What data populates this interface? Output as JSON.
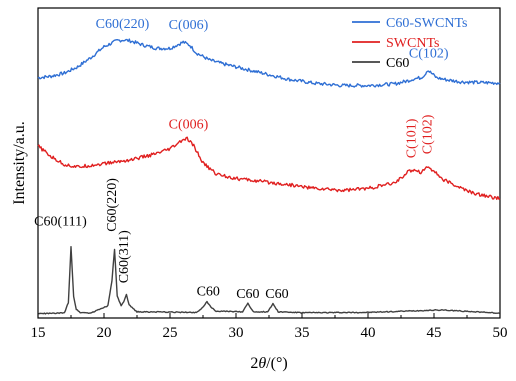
{
  "chart_data": {
    "type": "line",
    "xlabel_prefix": "2",
    "xlabel_var": "θ",
    "xlabel_unit": "/(°)",
    "ylabel": "Intensity/a.u.",
    "xlim": [
      15,
      50
    ],
    "x_ticks": [
      "15",
      "20",
      "25",
      "30",
      "35",
      "40",
      "45",
      "50"
    ],
    "legend_position": "top-right",
    "series": [
      {
        "name": "C60-SWCNTs",
        "color": "#2f6fd4",
        "x": [
          15,
          16,
          17,
          18,
          19,
          20,
          21,
          21.5,
          22,
          23,
          24,
          25,
          25.5,
          26,
          26.5,
          27,
          28,
          29,
          30,
          32,
          34,
          36,
          38,
          40,
          42,
          43,
          43.5,
          44,
          44.3,
          44.5,
          44.8,
          45.2,
          46,
          47,
          48,
          50
        ],
        "y": [
          0.775,
          0.78,
          0.79,
          0.81,
          0.84,
          0.875,
          0.895,
          0.897,
          0.894,
          0.88,
          0.87,
          0.87,
          0.88,
          0.89,
          0.88,
          0.855,
          0.832,
          0.82,
          0.81,
          0.79,
          0.77,
          0.757,
          0.75,
          0.75,
          0.755,
          0.765,
          0.772,
          0.775,
          0.785,
          0.8,
          0.79,
          0.775,
          0.768,
          0.762,
          0.76,
          0.758
        ]
      },
      {
        "name": "SWCNTs",
        "color": "#e02020",
        "x": [
          15,
          16,
          17,
          18,
          20,
          22,
          24,
          25,
          25.5,
          26,
          26.3,
          26.8,
          27.5,
          28.5,
          30,
          32,
          34,
          36,
          38,
          40,
          42,
          43,
          43.5,
          44,
          44.5,
          45,
          45.5,
          46,
          47,
          48,
          50
        ],
        "y": [
          0.555,
          0.52,
          0.495,
          0.487,
          0.498,
          0.51,
          0.53,
          0.545,
          0.56,
          0.575,
          0.578,
          0.555,
          0.5,
          0.465,
          0.45,
          0.44,
          0.43,
          0.418,
          0.412,
          0.418,
          0.435,
          0.47,
          0.48,
          0.47,
          0.488,
          0.475,
          0.452,
          0.44,
          0.42,
          0.402,
          0.385
        ]
      },
      {
        "name": "C60",
        "color": "#404040",
        "x": [
          15,
          17,
          17.3,
          17.5,
          17.7,
          17.9,
          18.2,
          19,
          20.3,
          20.6,
          20.8,
          21.0,
          21.3,
          21.5,
          21.7,
          21.9,
          22.5,
          27,
          27.5,
          27.8,
          28.1,
          28.5,
          30.5,
          30.9,
          31.3,
          32.4,
          32.8,
          33.2,
          35,
          40,
          45.5,
          50
        ],
        "y": [
          0.014,
          0.016,
          0.05,
          0.23,
          0.07,
          0.028,
          0.018,
          0.016,
          0.04,
          0.12,
          0.222,
          0.07,
          0.04,
          0.052,
          0.075,
          0.042,
          0.02,
          0.018,
          0.035,
          0.052,
          0.035,
          0.022,
          0.02,
          0.048,
          0.02,
          0.02,
          0.046,
          0.02,
          0.017,
          0.018,
          0.026,
          0.016
        ]
      }
    ],
    "annotations": [
      {
        "id": "ann-c60-220-blue",
        "text": "C60(220)",
        "color": "#2f6fd4",
        "x": 21.4,
        "y": 0.935,
        "rotate": false
      },
      {
        "id": "ann-c006-blue",
        "text": "C(006)",
        "color": "#2f6fd4",
        "x": 26.4,
        "y": 0.932,
        "rotate": false
      },
      {
        "id": "ann-c102-blue",
        "text": "C(102)",
        "color": "#2f6fd4",
        "x": 44.6,
        "y": 0.84,
        "rotate": false
      },
      {
        "id": "ann-c006-red",
        "text": "C(006)",
        "color": "#e02020",
        "x": 26.4,
        "y": 0.612,
        "rotate": false
      },
      {
        "id": "ann-c101-red",
        "text": "C(101)",
        "color": "#e02020",
        "x": 43.6,
        "y": 0.515,
        "rotate": true
      },
      {
        "id": "ann-c102-red",
        "text": "C(102)",
        "color": "#e02020",
        "x": 44.8,
        "y": 0.528,
        "rotate": true
      },
      {
        "id": "ann-c60-111",
        "text": "C60(111)",
        "color": "#000000",
        "x": 16.7,
        "y": 0.298,
        "rotate": false
      },
      {
        "id": "ann-c60-220-black",
        "text": "C60(220)",
        "color": "#000000",
        "x": 20.9,
        "y": 0.278,
        "rotate": true
      },
      {
        "id": "ann-c60-311",
        "text": "C60(311)",
        "color": "#000000",
        "x": 21.8,
        "y": 0.112,
        "rotate": true
      },
      {
        "id": "ann-c60-a",
        "text": "C60",
        "color": "#000000",
        "x": 27.9,
        "y": 0.072,
        "rotate": false
      },
      {
        "id": "ann-c60-b",
        "text": "C60",
        "color": "#000000",
        "x": 30.9,
        "y": 0.064,
        "rotate": false
      },
      {
        "id": "ann-c60-c",
        "text": "C60",
        "color": "#000000",
        "x": 33.1,
        "y": 0.064,
        "rotate": false
      }
    ]
  }
}
